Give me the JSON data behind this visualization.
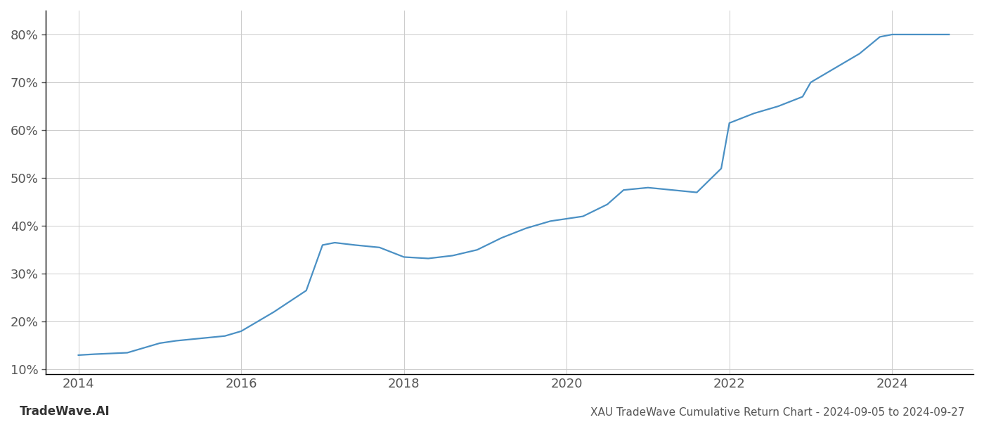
{
  "title": "XAU TradeWave Cumulative Return Chart - 2024-09-05 to 2024-09-27",
  "watermark": "TradeWave.AI",
  "line_color": "#4a90c4",
  "line_width": 1.6,
  "background_color": "#ffffff",
  "grid_color": "#cccccc",
  "x_years": [
    2014.0,
    2014.2,
    2014.6,
    2015.0,
    2015.2,
    2015.5,
    2015.8,
    2016.0,
    2016.4,
    2016.8,
    2017.0,
    2017.15,
    2017.4,
    2017.7,
    2018.0,
    2018.3,
    2018.6,
    2018.9,
    2019.2,
    2019.5,
    2019.8,
    2020.0,
    2020.2,
    2020.5,
    2020.7,
    2021.0,
    2021.3,
    2021.6,
    2021.9,
    2022.0,
    2022.3,
    2022.6,
    2022.9,
    2023.0,
    2023.3,
    2023.6,
    2023.85,
    2024.0,
    2024.3,
    2024.7
  ],
  "y_values": [
    13.0,
    13.2,
    13.5,
    15.5,
    16.0,
    16.5,
    17.0,
    18.0,
    22.0,
    26.5,
    36.0,
    36.5,
    36.0,
    35.5,
    33.5,
    33.2,
    33.8,
    35.0,
    37.5,
    39.5,
    41.0,
    41.5,
    42.0,
    44.5,
    47.5,
    48.0,
    47.5,
    47.0,
    52.0,
    61.5,
    63.5,
    65.0,
    67.0,
    70.0,
    73.0,
    76.0,
    79.5,
    80.0,
    80.0,
    80.0
  ],
  "xlim": [
    2013.6,
    2025.0
  ],
  "ylim": [
    9.0,
    85.0
  ],
  "yticks": [
    10,
    20,
    30,
    40,
    50,
    60,
    70,
    80
  ],
  "xticks": [
    2014,
    2016,
    2018,
    2020,
    2022,
    2024
  ],
  "tick_fontsize": 13,
  "title_fontsize": 11,
  "watermark_fontsize": 12
}
